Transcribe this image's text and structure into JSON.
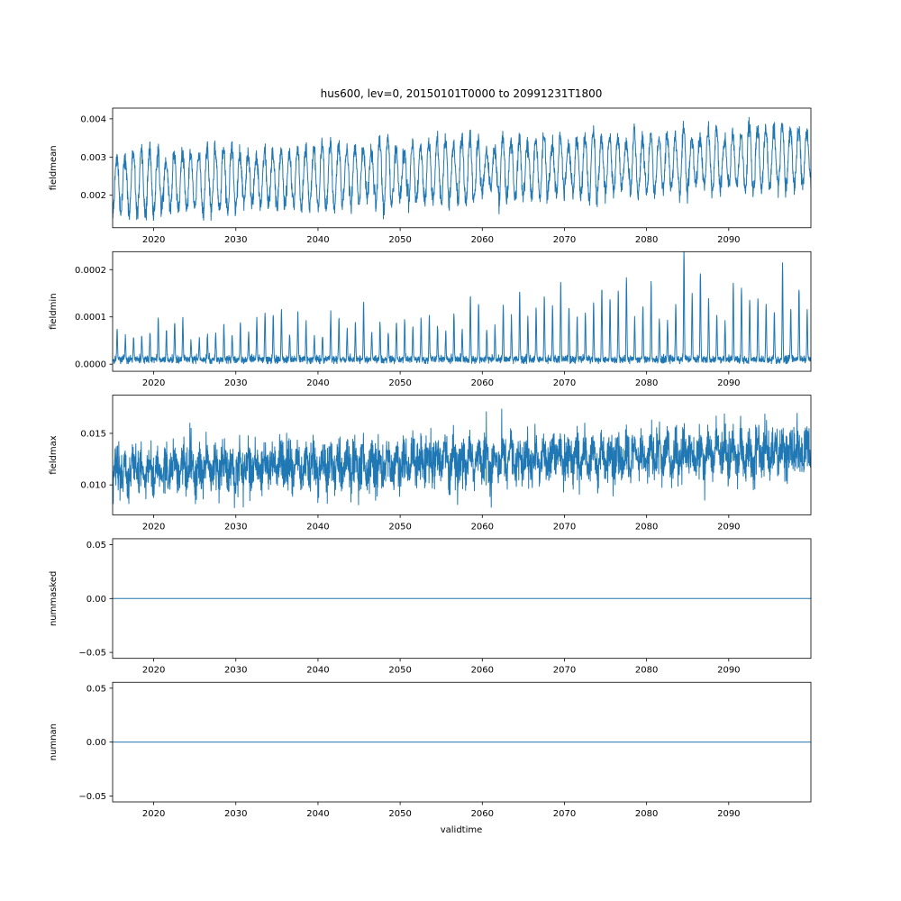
{
  "figure": {
    "title": "hus600, lev=0, 20150101T0000 to 20991231T1800",
    "xlabel": "validtime",
    "line_color": "#1f77b4",
    "background": "#ffffff",
    "x": {
      "min": 2015,
      "max": 2100,
      "ticks": [
        2020,
        2030,
        2040,
        2050,
        2060,
        2070,
        2080,
        2090
      ]
    }
  },
  "chart_data": [
    {
      "type": "line",
      "ylabel": "fieldmean",
      "description": "Annual oscillation between ~0.0015 and ~0.0036 in 2015, slowly rising so the cycle spans ~0.0022 to ~0.0043 by 2099; mean drifts from ~0.0023 up to ~0.0031.",
      "x_range": [
        2015,
        2100
      ],
      "ylim": [
        0.00115,
        0.00428
      ],
      "yticks": [
        {
          "value": 0.002,
          "label": "0.002"
        },
        {
          "value": 0.003,
          "label": "0.003"
        },
        {
          "value": 0.004,
          "label": "0.004"
        }
      ],
      "series": {
        "name": "fieldmean",
        "gen": {
          "seed": 11,
          "n": 3400,
          "base": 0.00228,
          "trend": 8.5e-06,
          "season_amp": 0.00072,
          "season_pow": 0.85,
          "phase": 0.25,
          "year_jitter": 0.3,
          "noise": 0.00012
        }
      }
    },
    {
      "type": "line",
      "ylabel": "fieldmin",
      "description": "Baseline near 0.00001 with narrow annual spikes; spike heights grow from ~0.00005-0.0001 in 2015 to ~0.00015-0.00023 by the 2080s-2090s, tallest spike ~0.00023 near 2084.",
      "x_range": [
        2015,
        2100
      ],
      "ylim": [
        -1.5e-05,
        0.000238
      ],
      "yticks": [
        {
          "value": 0.0,
          "label": "0.0000"
        },
        {
          "value": 0.0001,
          "label": "0.0001"
        },
        {
          "value": 0.0002,
          "label": "0.0002"
        }
      ],
      "series": {
        "name": "fieldmin",
        "gen": {
          "seed": 22,
          "n": 3400,
          "base": 1e-05,
          "spike_amp": 6e-05,
          "spike_trend": 1.1e-06,
          "spike_pow": 10,
          "phase": 0.3,
          "year_jitter": 0.45,
          "boost": {
            "year": 69,
            "factor": 1.35
          },
          "noise": 4e-06,
          "clip": [
            1e-06,
            1
          ]
        }
      }
    },
    {
      "type": "line",
      "ylabel": "fieldmax",
      "description": "Dense noisy band oscillating annually between ~0.008 and ~0.017 in 2015, rising to between ~0.010 and ~0.018 by 2099; center drifts from ~0.0113 to ~0.0133.",
      "x_range": [
        2015,
        2100
      ],
      "ylim": [
        0.0071,
        0.0187
      ],
      "yticks": [
        {
          "value": 0.01,
          "label": "0.010"
        },
        {
          "value": 0.015,
          "label": "0.015"
        }
      ],
      "series": {
        "name": "fieldmax",
        "gen": {
          "seed": 33,
          "n": 3400,
          "base": 0.0113,
          "trend": 2.35e-05,
          "season_amp": 0.0009,
          "phase": 0.25,
          "year_jitter": 0.35,
          "noise": 0.0011,
          "clip": [
            0.0078,
            0.0184
          ]
        }
      }
    },
    {
      "type": "line",
      "ylabel": "nummasked",
      "description": "Constant 0.00 for the whole period 2015-2099.",
      "x_range": [
        2015,
        2100
      ],
      "ylim": [
        -0.0555,
        0.0555
      ],
      "yticks": [
        {
          "value": -0.05,
          "label": "−0.05"
        },
        {
          "value": 0.0,
          "label": "0.00"
        },
        {
          "value": 0.05,
          "label": "0.05"
        }
      ],
      "series": {
        "name": "nummasked",
        "gen": {
          "seed": 44,
          "n": 100,
          "base": 0,
          "noise": 0
        }
      }
    },
    {
      "type": "line",
      "ylabel": "numnan",
      "description": "Constant 0.00 for the whole period 2015-2099.",
      "x_range": [
        2015,
        2100
      ],
      "ylim": [
        -0.0555,
        0.0555
      ],
      "yticks": [
        {
          "value": -0.05,
          "label": "−0.05"
        },
        {
          "value": 0.0,
          "label": "0.00"
        },
        {
          "value": 0.05,
          "label": "0.05"
        }
      ],
      "series": {
        "name": "numnan",
        "gen": {
          "seed": 55,
          "n": 100,
          "base": 0,
          "noise": 0
        }
      }
    }
  ]
}
